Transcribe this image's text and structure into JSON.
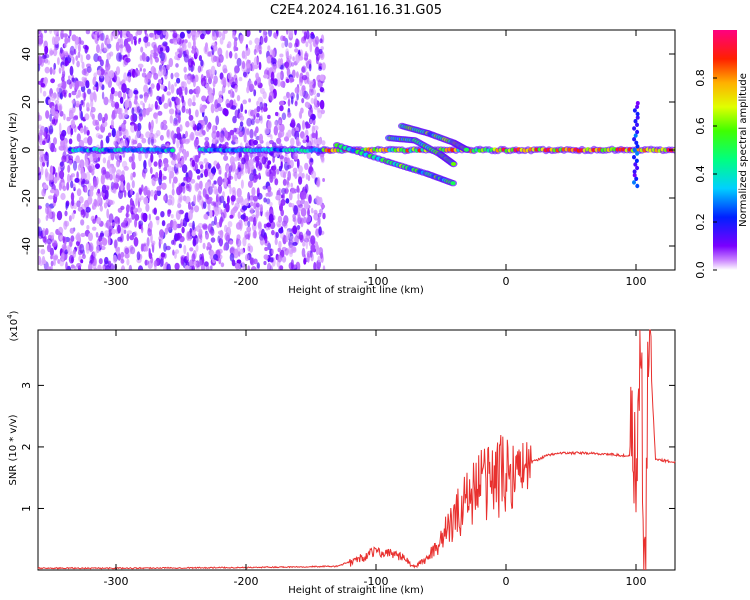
{
  "title": "C2E4.2024.161.16.31.G05",
  "chart_data": [
    {
      "type": "heatmap",
      "xlabel": "Height of straight line (km)",
      "ylabel": "Frequency (Hz)",
      "xlim": [
        -360,
        130
      ],
      "ylim": [
        -50,
        50
      ],
      "x_ticks": [
        -300,
        -200,
        -100,
        0,
        100
      ],
      "y_ticks": [
        -40,
        -20,
        0,
        20,
        40
      ],
      "colorbar": {
        "label": "Normalized spectral amplitude",
        "range": [
          0,
          1
        ],
        "ticks": [
          "0.0",
          "0.2",
          "0.4",
          "0.6",
          "0.8"
        ],
        "tick_values": [
          0,
          0.2,
          0.4,
          0.6,
          0.8
        ]
      },
      "features": {
        "scatter_region_x": [
          -360,
          -140
        ],
        "center_track_segments": [
          [
            -335,
            -255
          ],
          [
            -235,
            -140
          ],
          [
            -140,
            130
          ]
        ],
        "branches": [
          {
            "x": [
              -130,
              -90,
              -60,
              -40
            ],
            "y": [
              2,
              -5,
              -10,
              -14
            ]
          },
          {
            "x": [
              -90,
              -70,
              -50,
              -40
            ],
            "y": [
              5,
              4,
              -2,
              -6
            ]
          },
          {
            "x": [
              -80,
              -60,
              -40,
              -30
            ],
            "y": [
              10,
              7,
              3,
              0
            ]
          }
        ],
        "spike_x": 100,
        "spike_y": [
          -15,
          20
        ]
      }
    },
    {
      "type": "line",
      "xlabel": "Height of straight line (km)",
      "ylabel": "SNR (10 * v/v)",
      "y_multiplier": "(x10",
      "y_multiplier_exp": "4",
      "y_multiplier_close": ")",
      "xlim": [
        -360,
        130
      ],
      "ylim": [
        0,
        3.9
      ],
      "x_ticks": [
        -300,
        -200,
        -100,
        0,
        100
      ],
      "y_ticks": [
        1,
        2,
        3
      ],
      "color": "#e8302e",
      "x": [
        -360,
        -300,
        -200,
        -130,
        -110,
        -100,
        -95,
        -90,
        -80,
        -70,
        -60,
        -50,
        -40,
        -30,
        -20,
        -10,
        0,
        10,
        20,
        30,
        40,
        60,
        80,
        95,
        100,
        103,
        107,
        110,
        115,
        130
      ],
      "y": [
        0.02,
        0.02,
        0.03,
        0.05,
        0.2,
        0.32,
        0.25,
        0.3,
        0.2,
        0.05,
        0.2,
        0.5,
        0.8,
        1.2,
        1.4,
        1.5,
        1.55,
        1.65,
        1.75,
        1.85,
        1.9,
        1.9,
        1.88,
        1.85,
        1.6,
        3.5,
        0.3,
        3.9,
        1.8,
        1.75
      ]
    }
  ]
}
